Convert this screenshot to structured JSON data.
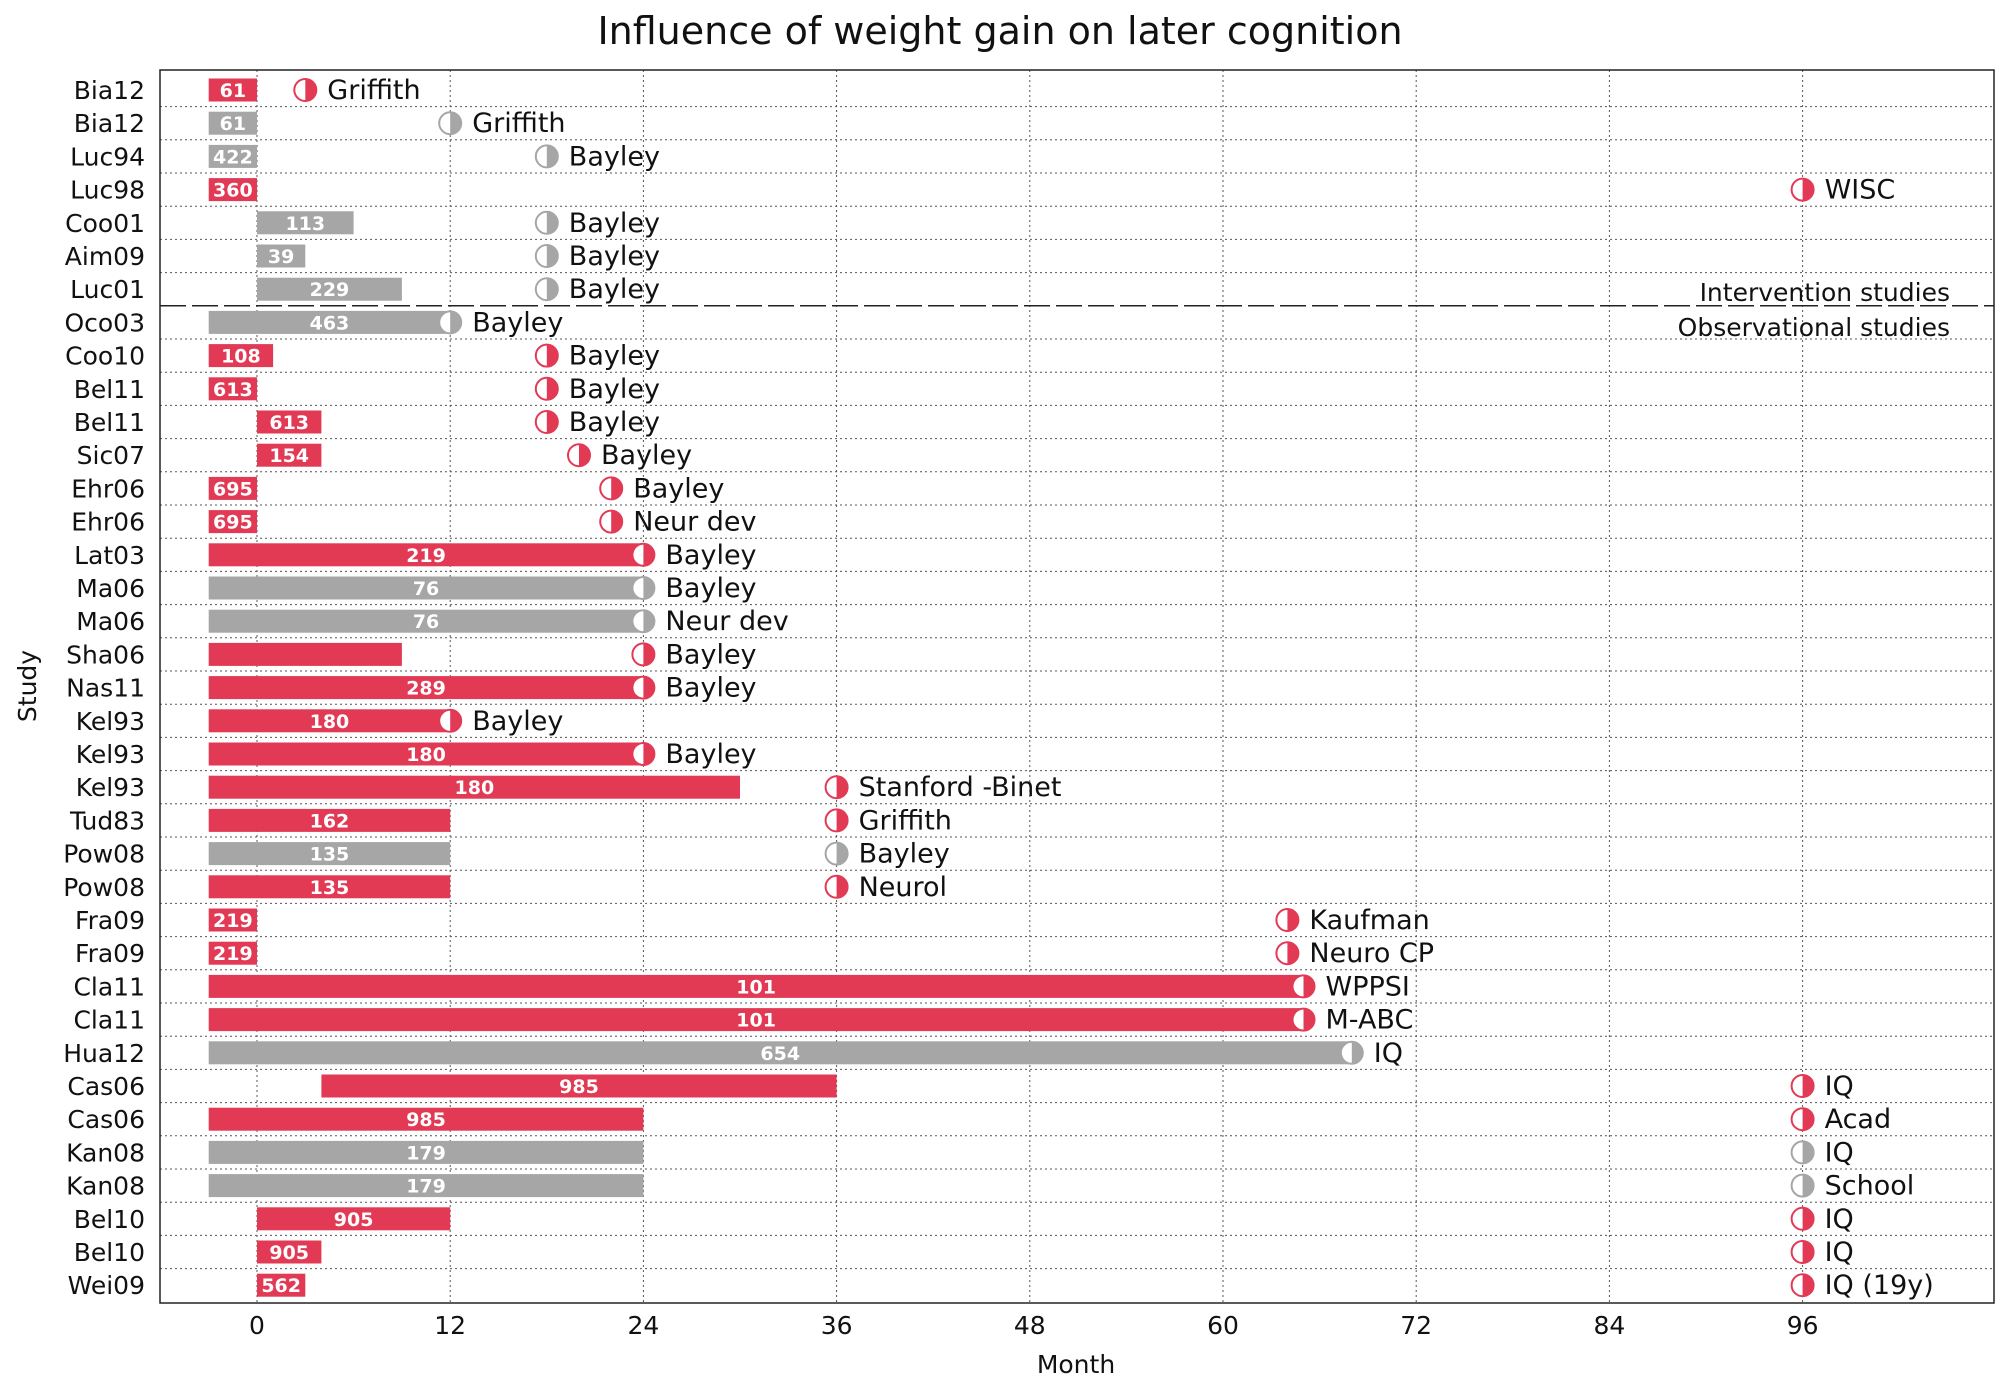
{
  "chart_data": {
    "type": "bar",
    "title": "Influence of weight gain on later cognition",
    "xlabel": "Month",
    "ylabel": "Study",
    "xlim": [
      -6,
      108
    ],
    "xticks": [
      0,
      12,
      24,
      36,
      48,
      60,
      72,
      84,
      96
    ],
    "grid": true,
    "colors": {
      "significant": "#e23a55",
      "not_significant": "#a6a6a6"
    },
    "annotations": [
      "Intervention studies",
      "Observational studies"
    ],
    "divider_after_row": 7,
    "rows": [
      {
        "study": "Bia12",
        "start": -3,
        "end": 0,
        "n": "61",
        "assess": 3,
        "test": "Griffith",
        "sig": true
      },
      {
        "study": "Bia12",
        "start": -3,
        "end": 0,
        "n": "61",
        "assess": 12,
        "test": "Griffith",
        "sig": false
      },
      {
        "study": "Luc94",
        "start": -3,
        "end": 0,
        "n": "422",
        "assess": 18,
        "test": "Bayley",
        "sig": false
      },
      {
        "study": "Luc98",
        "start": -3,
        "end": 0,
        "n": "360",
        "assess": 96,
        "test": "WISC",
        "sig": true
      },
      {
        "study": "Coo01",
        "start": 0,
        "end": 6,
        "n": "113",
        "assess": 18,
        "test": "Bayley",
        "sig": false
      },
      {
        "study": "Aim09",
        "start": 0,
        "end": 3,
        "n": "39",
        "assess": 18,
        "test": "Bayley",
        "sig": false
      },
      {
        "study": "Luc01",
        "start": 0,
        "end": 9,
        "n": "229",
        "assess": 18,
        "test": "Bayley",
        "sig": false
      },
      {
        "study": "Oco03",
        "start": -3,
        "end": 12,
        "n": "463",
        "assess": 12,
        "test": "Bayley",
        "sig": false
      },
      {
        "study": "Coo10",
        "start": -3,
        "end": 1,
        "n": "108",
        "assess": 18,
        "test": "Bayley",
        "sig": true
      },
      {
        "study": "Bel11",
        "start": -3,
        "end": 0,
        "n": "613",
        "assess": 18,
        "test": "Bayley",
        "sig": true
      },
      {
        "study": "Bel11",
        "start": 0,
        "end": 4,
        "n": "613",
        "assess": 18,
        "test": "Bayley",
        "sig": true
      },
      {
        "study": "Sic07",
        "start": 0,
        "end": 4,
        "n": "154",
        "assess": 20,
        "test": "Bayley",
        "sig": true
      },
      {
        "study": "Ehr06",
        "start": -3,
        "end": 0,
        "n": "695",
        "assess": 22,
        "test": "Bayley",
        "sig": true
      },
      {
        "study": "Ehr06",
        "start": -3,
        "end": 0,
        "n": "695",
        "assess": 22,
        "test": "Neur dev",
        "sig": true
      },
      {
        "study": "Lat03",
        "start": -3,
        "end": 24,
        "n": "219",
        "assess": 24,
        "test": "Bayley",
        "sig": true
      },
      {
        "study": "Ma06",
        "start": -3,
        "end": 24,
        "n": "76",
        "assess": 24,
        "test": "Bayley",
        "sig": false
      },
      {
        "study": "Ma06",
        "start": -3,
        "end": 24,
        "n": "76",
        "assess": 24,
        "test": "Neur dev",
        "sig": false
      },
      {
        "study": "Sha06",
        "start": -3,
        "end": 9,
        "n": "",
        "assess": 24,
        "test": "Bayley",
        "sig": true
      },
      {
        "study": "Nas11",
        "start": -3,
        "end": 24,
        "n": "289",
        "assess": 24,
        "test": "Bayley",
        "sig": true
      },
      {
        "study": "Kel93",
        "start": -3,
        "end": 12,
        "n": "180",
        "assess": 12,
        "test": "Bayley",
        "sig": true
      },
      {
        "study": "Kel93",
        "start": -3,
        "end": 24,
        "n": "180",
        "assess": 24,
        "test": "Bayley",
        "sig": true
      },
      {
        "study": "Kel93",
        "start": -3,
        "end": 30,
        "n": "180",
        "assess": 36,
        "test": "Stanford -Binet",
        "sig": true
      },
      {
        "study": "Tud83",
        "start": -3,
        "end": 12,
        "n": "162",
        "assess": 36,
        "test": "Griffith",
        "sig": true
      },
      {
        "study": "Pow08",
        "start": -3,
        "end": 12,
        "n": "135",
        "assess": 36,
        "test": "Bayley",
        "sig": false
      },
      {
        "study": "Pow08",
        "start": -3,
        "end": 12,
        "n": "135",
        "assess": 36,
        "test": "Neurol",
        "sig": true
      },
      {
        "study": "Fra09",
        "start": -3,
        "end": 0,
        "n": "219",
        "assess": 64,
        "test": "Kaufman",
        "sig": true
      },
      {
        "study": "Fra09",
        "start": -3,
        "end": 0,
        "n": "219",
        "assess": 64,
        "test": "Neuro CP",
        "sig": true
      },
      {
        "study": "Cla11",
        "start": -3,
        "end": 65,
        "n": "101",
        "assess": 65,
        "test": "WPPSI",
        "sig": true
      },
      {
        "study": "Cla11",
        "start": -3,
        "end": 65,
        "n": "101",
        "assess": 65,
        "test": "M-ABC",
        "sig": true
      },
      {
        "study": "Hua12",
        "start": -3,
        "end": 68,
        "n": "654",
        "assess": 68,
        "test": "IQ",
        "sig": false
      },
      {
        "study": "Cas06",
        "start": 4,
        "end": 36,
        "n": "985",
        "assess": 96,
        "test": "IQ",
        "sig": true
      },
      {
        "study": "Cas06",
        "start": -3,
        "end": 24,
        "n": "985",
        "assess": 96,
        "test": "Acad",
        "sig": true
      },
      {
        "study": "Kan08",
        "start": -3,
        "end": 24,
        "n": "179",
        "assess": 96,
        "test": "IQ",
        "sig": false
      },
      {
        "study": "Kan08",
        "start": -3,
        "end": 24,
        "n": "179",
        "assess": 96,
        "test": "School",
        "sig": false
      },
      {
        "study": "Bel10",
        "start": 0,
        "end": 12,
        "n": "905",
        "assess": 96,
        "test": "IQ",
        "sig": true
      },
      {
        "study": "Bel10",
        "start": 0,
        "end": 4,
        "n": "905",
        "assess": 96,
        "test": "IQ",
        "sig": true
      },
      {
        "study": "Wei09",
        "start": 0,
        "end": 3,
        "n": "562",
        "assess": 96,
        "test": "IQ (19y)",
        "sig": true
      }
    ]
  }
}
